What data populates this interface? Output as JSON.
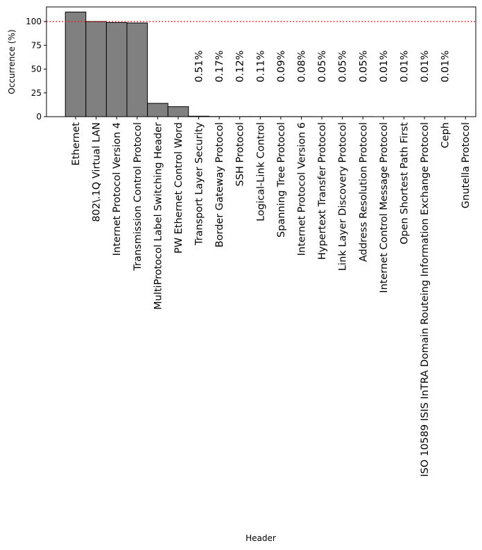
{
  "chart_data": {
    "type": "bar",
    "title": "",
    "xlabel": "Header",
    "ylabel": "Occurrence (%)",
    "ylim": [
      0,
      115
    ],
    "yticks": [
      0,
      25,
      50,
      75,
      100
    ],
    "reference_line": {
      "y": 100,
      "color": "#ff0000",
      "style": "dotted"
    },
    "bar_color": "#808080",
    "edge_color": "#000000",
    "categories": [
      "Ethernet",
      "802\\.1Q Virtual LAN",
      "Internet Protocol Version 4",
      "Transmission Control Protocol",
      "MultiProtocol Label Switching Header",
      "PW Ethernet Control Word",
      "Transport Layer Security",
      "Border Gateway Protocol",
      "SSH Protocol",
      "Logical-Link Control",
      "Spanning Tree Protocol",
      "Internet Protocol Version 6",
      "Hypertext Transfer Protocol",
      "Link Layer Discovery Protocol",
      "Address Resolution Protocol",
      "Internet Control Message Protocol",
      "Open Shortest Path First",
      "ISO 10589 ISIS InTRA Domain Routeing Information Exchange Protocol",
      "Ceph",
      "Gnutella Protocol"
    ],
    "values": [
      110,
      100,
      99,
      98.5,
      14,
      10.5,
      0.51,
      0.17,
      0.12,
      0.11,
      0.09,
      0.08,
      0.05,
      0.05,
      0.05,
      0.01,
      0.01,
      0.01,
      0.01,
      0.0
    ],
    "data_labels": [
      "",
      "",
      "",
      "",
      "",
      "",
      "0.51%",
      "0.17%",
      "0.12%",
      "0.11%",
      "0.09%",
      "0.08%",
      "0.05%",
      "0.05%",
      "0.05%",
      "0.01%",
      "0.01%",
      "0.01%",
      "0.01%",
      ""
    ]
  }
}
